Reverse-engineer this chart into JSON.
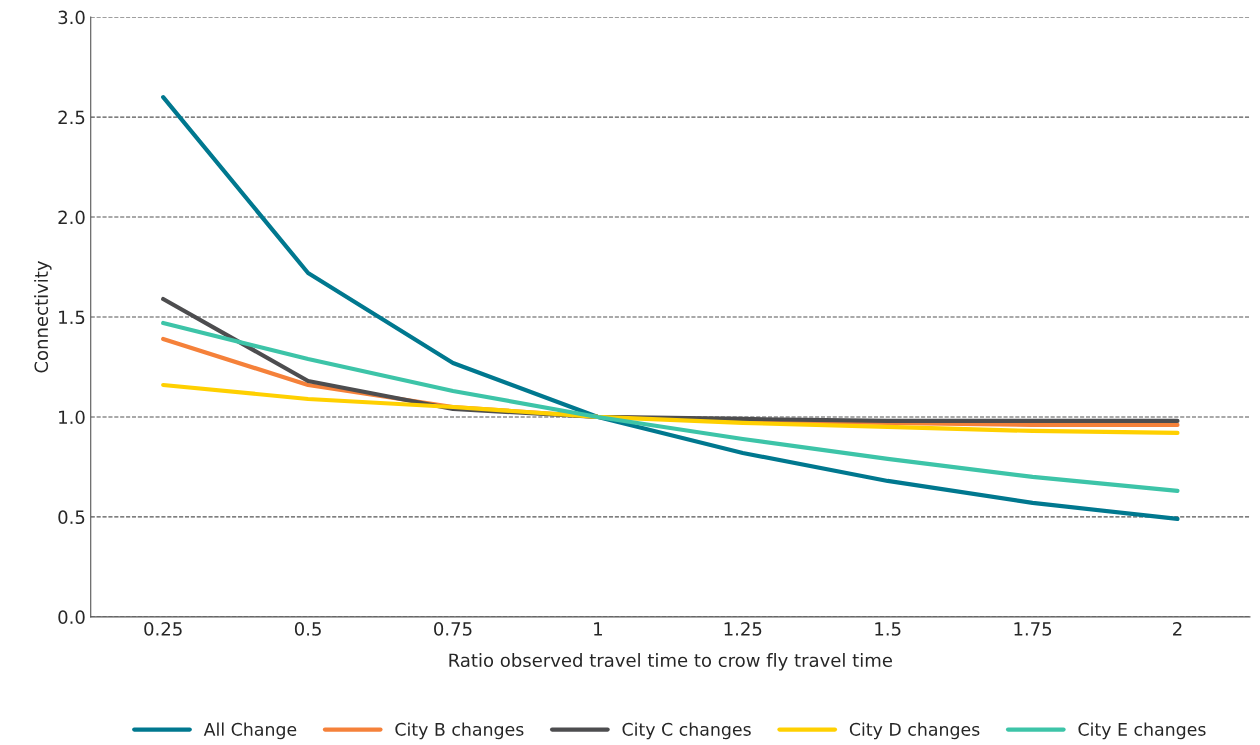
{
  "chart_data": {
    "type": "line",
    "xlabel": "Ratio observed travel time to crow fly travel time",
    "ylabel": "Connectivity",
    "categories": [
      "0.25",
      "0.5",
      "0.75",
      "1",
      "1.25",
      "1.5",
      "1.75",
      "2"
    ],
    "series": [
      {
        "name": "All Change",
        "color": "#00788f",
        "values": [
          2.6,
          1.72,
          1.27,
          1.0,
          0.82,
          0.68,
          0.57,
          0.49
        ]
      },
      {
        "name": "City B changes",
        "color": "#f5813a",
        "values": [
          1.39,
          1.16,
          1.05,
          1.0,
          0.98,
          0.97,
          0.96,
          0.96
        ]
      },
      {
        "name": "City C changes",
        "color": "#4d4d4f",
        "values": [
          1.59,
          1.18,
          1.04,
          1.0,
          0.99,
          0.98,
          0.98,
          0.98
        ]
      },
      {
        "name": "City D changes",
        "color": "#ffd000",
        "values": [
          1.16,
          1.09,
          1.05,
          1.0,
          0.97,
          0.95,
          0.93,
          0.92
        ]
      },
      {
        "name": "City E changes",
        "color": "#3dc4a8",
        "values": [
          1.47,
          1.29,
          1.13,
          1.0,
          0.89,
          0.79,
          0.7,
          0.63
        ]
      }
    ],
    "ylim": [
      0,
      3.0
    ],
    "yticks": [
      {
        "value": 0,
        "label": "0.0"
      },
      {
        "value": 0.5,
        "label": "0.5"
      },
      {
        "value": 1,
        "label": "1.0"
      },
      {
        "value": 1.5,
        "label": "1.5"
      },
      {
        "value": 2,
        "label": "2.0"
      },
      {
        "value": 2.5,
        "label": "2.5"
      },
      {
        "value": 3,
        "label": "3.0"
      }
    ],
    "grid": "y",
    "legend": "bottom",
    "marker": "none",
    "line_style": "solid"
  }
}
